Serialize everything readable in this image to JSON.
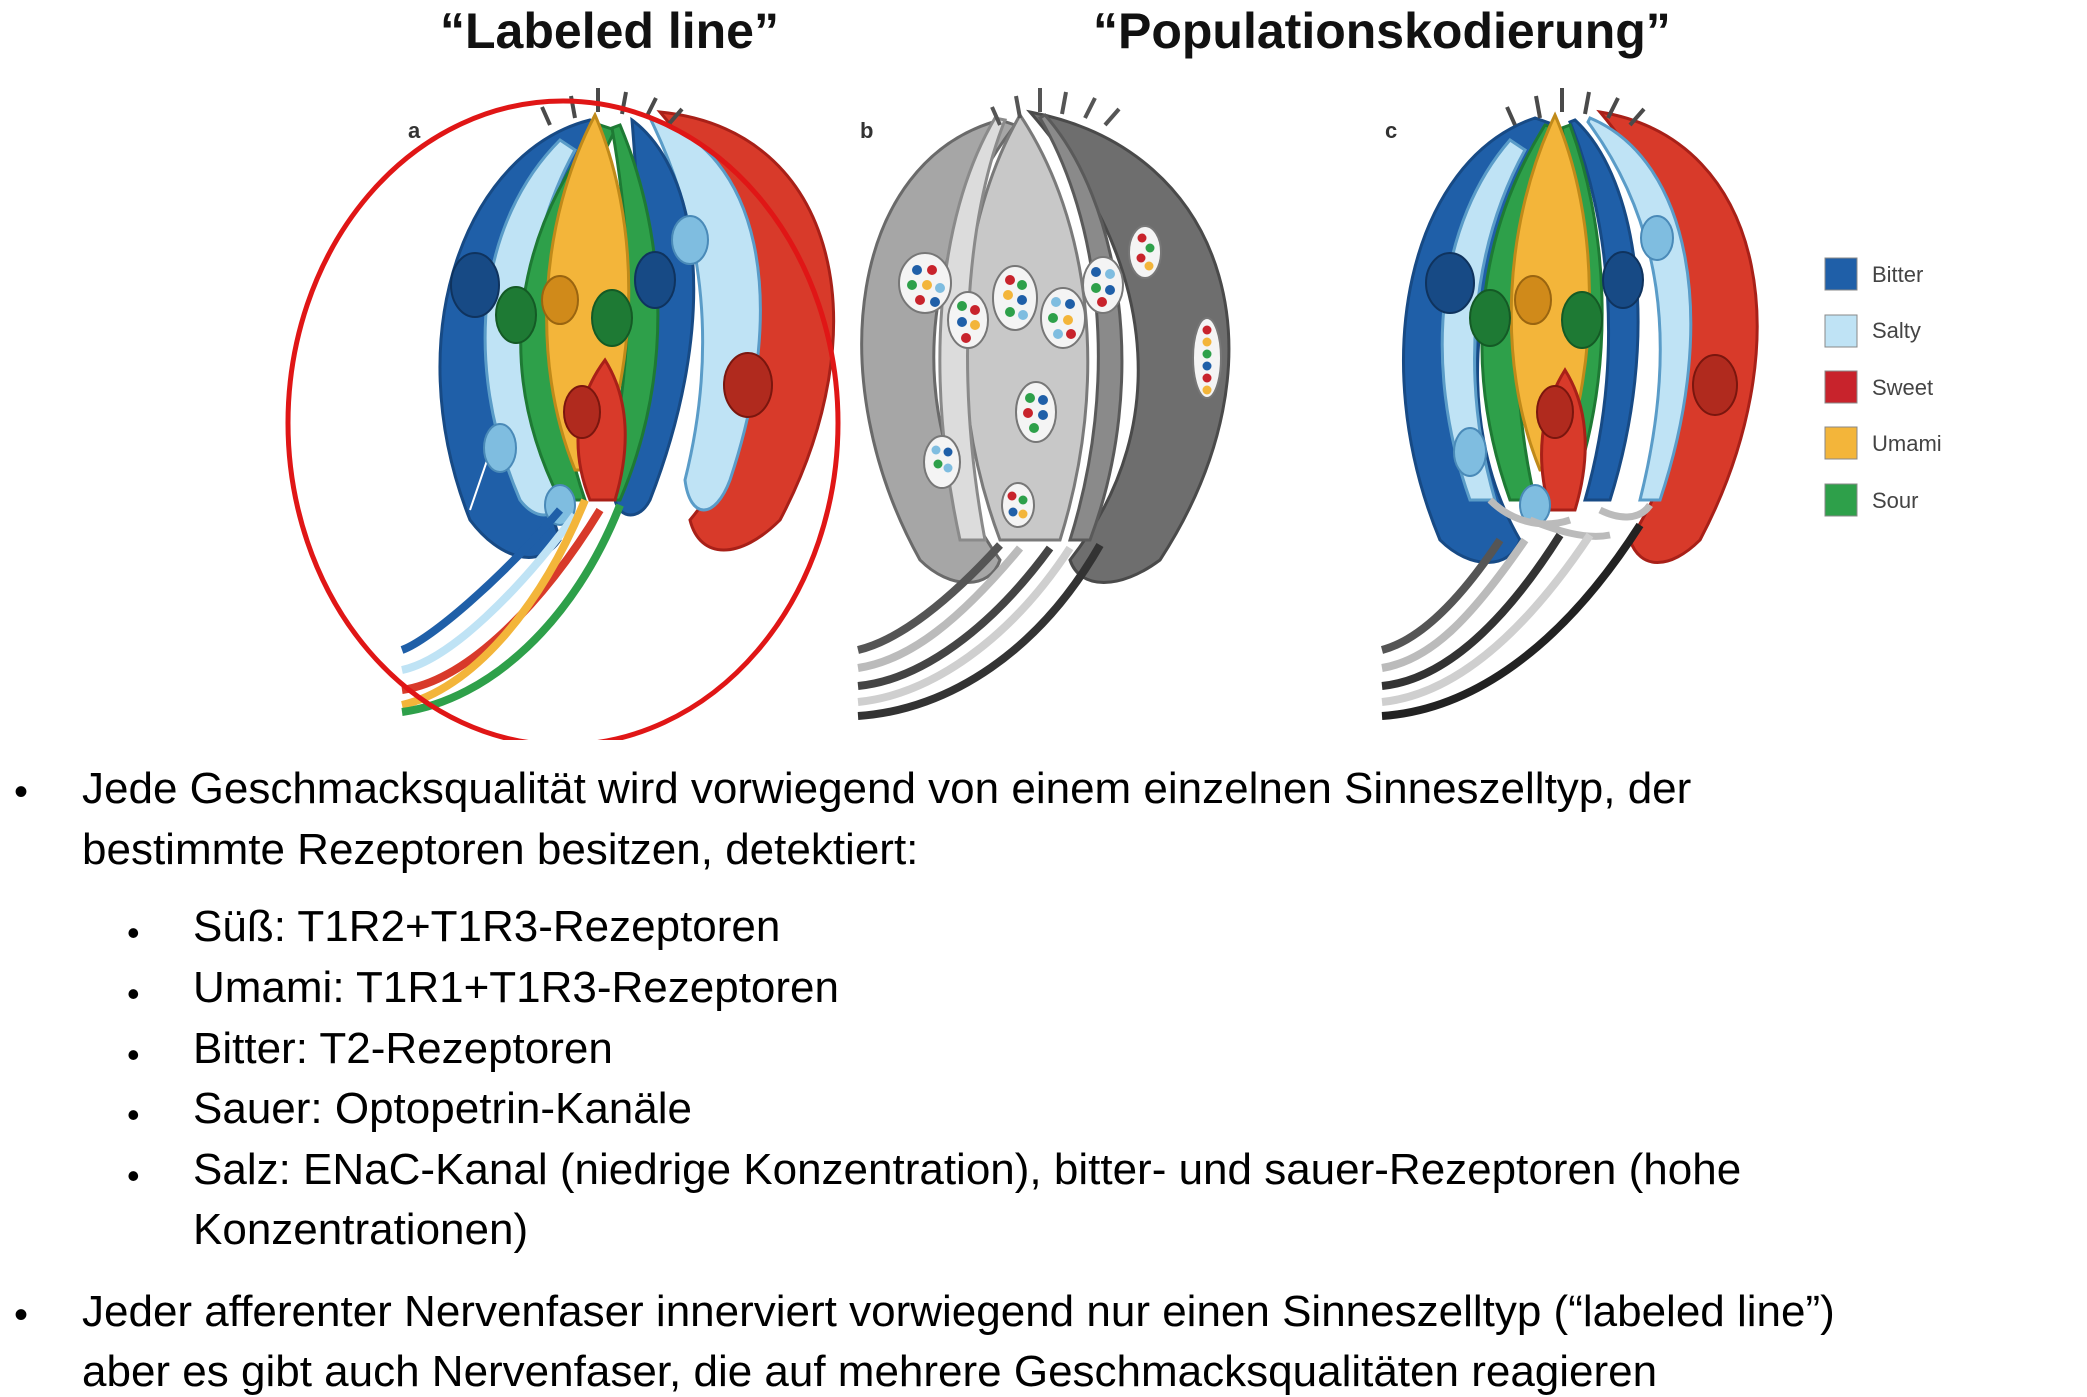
{
  "titles": {
    "labeled_line": "“Labeled line”",
    "population": "“Populationskodierung”"
  },
  "panels": {
    "a": "a",
    "b": "b",
    "c": "c"
  },
  "legend": [
    {
      "label": "Bitter",
      "color": "#1f5fa8"
    },
    {
      "label": "Salty",
      "color": "#bfe3f5"
    },
    {
      "label": "Sweet",
      "color": "#c8232c"
    },
    {
      "label": "Umami",
      "color": "#f3b53a"
    },
    {
      "label": "Sour",
      "color": "#2ea04a"
    }
  ],
  "highlight_color": "#e01616",
  "bullets": {
    "marker": "•",
    "main1_line1": "Jede Geschmacksqualität wird vorwiegend von einem einzelnen Sinneszelltyp, der",
    "main1_line2": "bestimmte Rezeptoren besitzen, detektiert:",
    "sub": [
      "Süß: T1R2+T1R3-Rezeptoren",
      "Umami: T1R1+T1R3-Rezeptoren",
      "Bitter: T2-Rezeptoren",
      "Sauer: Optopetrin-Kanäle",
      "Salz: ENaC-Kanal (niedrige Konzentration), bitter- und sauer-Rezeptoren (hohe"
    ],
    "sub_cont": "Konzentrationen)",
    "main2_line1": "Jeder afferenter Nervenfaser innerviert vorwiegend nur einen Sinneszelltyp (“labeled line”)",
    "main2_line2": "aber es gibt auch Nervenfaser, die auf mehrere Geschmacksqualitäten reagieren"
  }
}
